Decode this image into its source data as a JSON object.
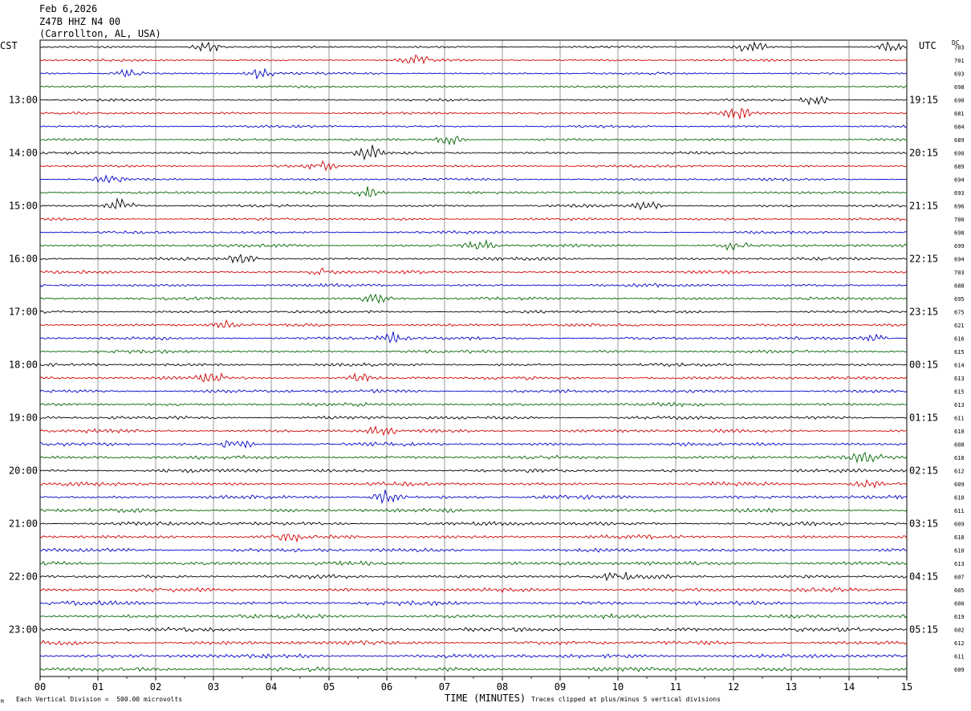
{
  "header": {
    "date": "Feb 6,2026",
    "station": "Z47B HHZ N4 00",
    "location": "(Carrollton, AL, USA)"
  },
  "footer": {
    "scale_note": "Each Vertical Division =  500.00 microvolts",
    "clip_note": "Traces clipped at plus/minus 5 vertical divisions",
    "corner_mark": "M"
  },
  "colors": {
    "trace_cycle": [
      "#000000",
      "#d00000",
      "#0000c8",
      "#006400"
    ],
    "grid": "#000000"
  },
  "chart_data": {
    "type": "line",
    "subtype": "helicorder",
    "xlabel": "TIME (MINUTES)",
    "x_ticks": [
      "00",
      "01",
      "02",
      "03",
      "04",
      "05",
      "06",
      "07",
      "08",
      "09",
      "10",
      "11",
      "12",
      "13",
      "14",
      "15"
    ],
    "xlim": [
      0,
      15
    ],
    "left_axis_title": "CST",
    "right_axis_title": "UTC",
    "dc_title": "DC",
    "left_hour_labels": [
      "13:00",
      "14:00",
      "15:00",
      "16:00",
      "17:00",
      "18:00",
      "19:00",
      "20:00",
      "21:00",
      "22:00",
      "23:00"
    ],
    "right_hour_labels": [
      "19:15",
      "20:15",
      "21:15",
      "22:15",
      "23:15",
      "00:15",
      "01:15",
      "02:15",
      "03:15",
      "04:15",
      "05:15"
    ],
    "traces_per_hour": 4,
    "trace_count": 48,
    "dc_offsets": [
      703,
      701,
      693,
      698,
      690,
      681,
      684,
      689,
      690,
      689,
      694,
      693,
      696,
      700,
      698,
      699,
      694,
      703,
      688,
      695,
      675,
      621,
      616,
      615,
      614,
      613,
      615,
      613,
      611,
      610,
      608,
      618,
      612,
      609,
      610,
      611,
      609,
      618,
      610,
      613,
      607,
      605,
      600,
      619,
      602,
      612,
      611,
      609
    ],
    "events": [
      {
        "trace": 0,
        "minute": 2.9,
        "amp": 2.2
      },
      {
        "trace": 0,
        "minute": 12.3,
        "amp": 2.0
      },
      {
        "trace": 0,
        "minute": 14.7,
        "amp": 1.6
      },
      {
        "trace": 1,
        "minute": 6.5,
        "amp": 1.4
      },
      {
        "trace": 2,
        "minute": 1.5,
        "amp": 1.4
      },
      {
        "trace": 2,
        "minute": 3.8,
        "amp": 1.7
      },
      {
        "trace": 4,
        "minute": 13.4,
        "amp": 2.1
      },
      {
        "trace": 5,
        "minute": 12.1,
        "amp": 1.8
      },
      {
        "trace": 7,
        "minute": 7.1,
        "amp": 1.6
      },
      {
        "trace": 8,
        "minute": 5.7,
        "amp": 2.4
      },
      {
        "trace": 9,
        "minute": 4.9,
        "amp": 1.3
      },
      {
        "trace": 10,
        "minute": 1.2,
        "amp": 1.5
      },
      {
        "trace": 11,
        "minute": 5.7,
        "amp": 1.8
      },
      {
        "trace": 12,
        "minute": 1.4,
        "amp": 2.2
      },
      {
        "trace": 12,
        "minute": 10.5,
        "amp": 1.5
      },
      {
        "trace": 15,
        "minute": 7.6,
        "amp": 2.0
      },
      {
        "trace": 15,
        "minute": 12.0,
        "amp": 1.6
      },
      {
        "trace": 16,
        "minute": 3.5,
        "amp": 1.4
      },
      {
        "trace": 17,
        "minute": 4.9,
        "amp": 1.6
      },
      {
        "trace": 19,
        "minute": 5.8,
        "amp": 1.5
      },
      {
        "trace": 21,
        "minute": 3.2,
        "amp": 1.4
      },
      {
        "trace": 22,
        "minute": 6.1,
        "amp": 1.8
      },
      {
        "trace": 22,
        "minute": 14.4,
        "amp": 1.6
      },
      {
        "trace": 25,
        "minute": 3.0,
        "amp": 1.4
      },
      {
        "trace": 25,
        "minute": 5.6,
        "amp": 1.6
      },
      {
        "trace": 29,
        "minute": 5.9,
        "amp": 1.5
      },
      {
        "trace": 30,
        "minute": 3.4,
        "amp": 1.6
      },
      {
        "trace": 31,
        "minute": 14.3,
        "amp": 1.5
      },
      {
        "trace": 33,
        "minute": 14.3,
        "amp": 1.3
      },
      {
        "trace": 34,
        "minute": 6.0,
        "amp": 2.0
      },
      {
        "trace": 37,
        "minute": 4.3,
        "amp": 1.3
      },
      {
        "trace": 40,
        "minute": 10.0,
        "amp": 1.3
      }
    ]
  }
}
